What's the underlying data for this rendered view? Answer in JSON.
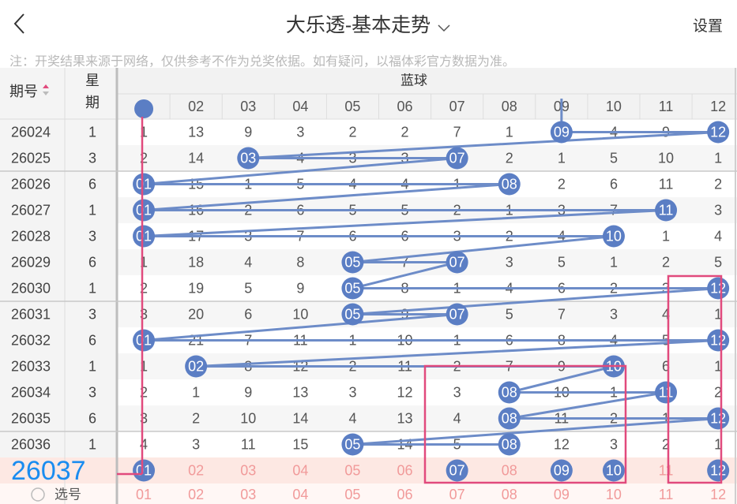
{
  "header": {
    "title": "大乐透-基本走势",
    "settings_label": "设置"
  },
  "notice": "注：开奖结果来源于网络，仅供参考不作为兑奖依据。如有疑问，以福体彩官方数据为准。",
  "table": {
    "col_issue": "期号",
    "col_week_1": "星",
    "col_week_2": "期",
    "group_label": "蓝球",
    "numbers": [
      "01",
      "02",
      "03",
      "04",
      "05",
      "06",
      "07",
      "08",
      "09",
      "10",
      "11",
      "12"
    ],
    "rows": [
      {
        "issue": "26024",
        "week": "1",
        "cells": [
          1,
          13,
          9,
          3,
          2,
          2,
          7,
          1,
          "09",
          4,
          9,
          "12"
        ]
      },
      {
        "issue": "26025",
        "week": "3",
        "cells": [
          2,
          14,
          "03",
          4,
          3,
          3,
          "07",
          2,
          1,
          5,
          10,
          1
        ]
      },
      {
        "issue": "26026",
        "week": "6",
        "cells": [
          "01",
          15,
          1,
          5,
          4,
          4,
          1,
          "08",
          2,
          6,
          11,
          2
        ]
      },
      {
        "issue": "26027",
        "week": "1",
        "cells": [
          "01",
          16,
          2,
          6,
          5,
          5,
          2,
          1,
          3,
          7,
          "11",
          3
        ]
      },
      {
        "issue": "26028",
        "week": "3",
        "cells": [
          "01",
          17,
          3,
          7,
          6,
          6,
          3,
          2,
          4,
          "10",
          1,
          4
        ]
      },
      {
        "issue": "26029",
        "week": "6",
        "cells": [
          1,
          18,
          4,
          8,
          "05",
          7,
          "07",
          3,
          5,
          1,
          2,
          5
        ]
      },
      {
        "issue": "26030",
        "week": "1",
        "cells": [
          2,
          19,
          5,
          9,
          "05",
          8,
          1,
          4,
          6,
          2,
          3,
          "12"
        ]
      },
      {
        "issue": "26031",
        "week": "3",
        "cells": [
          3,
          20,
          6,
          10,
          "05",
          9,
          "07",
          5,
          7,
          3,
          4,
          1
        ]
      },
      {
        "issue": "26032",
        "week": "6",
        "cells": [
          "01",
          21,
          7,
          11,
          1,
          10,
          1,
          6,
          8,
          4,
          5,
          "12"
        ]
      },
      {
        "issue": "26033",
        "week": "1",
        "cells": [
          1,
          "02",
          8,
          12,
          2,
          11,
          2,
          7,
          9,
          "10",
          6,
          1
        ]
      },
      {
        "issue": "26034",
        "week": "3",
        "cells": [
          2,
          1,
          9,
          13,
          3,
          12,
          3,
          "08",
          10,
          1,
          "11",
          2
        ]
      },
      {
        "issue": "26035",
        "week": "6",
        "cells": [
          3,
          2,
          10,
          14,
          4,
          13,
          4,
          "08",
          11,
          2,
          1,
          "12"
        ]
      },
      {
        "issue": "26036",
        "week": "1",
        "cells": [
          4,
          3,
          11,
          15,
          "05",
          14,
          5,
          "08",
          12,
          3,
          2,
          1
        ]
      }
    ],
    "select_row_label": "选号",
    "current_issue": "26037",
    "selected_numbers": [
      "01",
      "07",
      "09",
      "10",
      "12"
    ]
  },
  "colors": {
    "ball": "#5b7ec4",
    "line": "#6d8cc8",
    "frame": "#e14a7d",
    "pick_text": "#f19a9a",
    "pick_bg": "#fde8e3",
    "current_issue": "#1a8cf0"
  }
}
